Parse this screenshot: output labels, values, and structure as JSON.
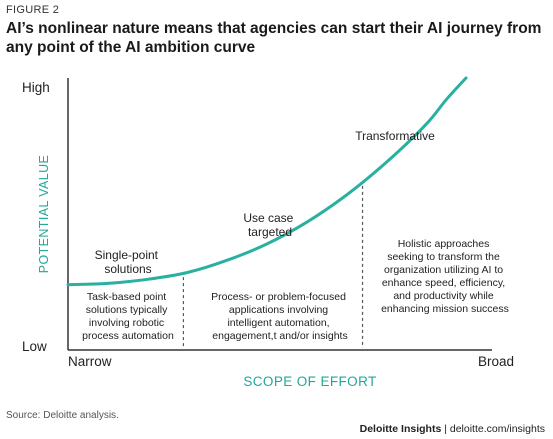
{
  "figure_label": "FIGURE 2",
  "title": "AI’s nonlinear nature means that agencies can start their AI journey from any point of the AI ambition curve",
  "source": "Source: Deloitte analysis.",
  "credit": {
    "brand": "Deloitte Insights",
    "separator": " | ",
    "url": "deloitte.com/insights"
  },
  "colors": {
    "curve": "#2ab0a0",
    "axis_label": "#1fa89a",
    "axis_line": "#333333",
    "divider": "#555555"
  },
  "chart_data": {
    "type": "line",
    "title": "",
    "xlabel": "SCOPE OF EFFORT",
    "ylabel": "POTENTIAL VALUE",
    "x_ticks": [
      "Narrow",
      "Broad"
    ],
    "y_ticks": [
      "Low",
      "High"
    ],
    "xlim": [
      0,
      1
    ],
    "ylim": [
      0,
      1
    ],
    "series": [
      {
        "x": [
          0.0,
          0.1,
          0.2,
          0.3,
          0.4,
          0.5,
          0.6,
          0.7,
          0.8,
          0.9,
          0.95,
          1.0
        ],
        "y": [
          0.24,
          0.245,
          0.26,
          0.285,
          0.33,
          0.39,
          0.47,
          0.57,
          0.69,
          0.83,
          0.92,
          1.0
        ]
      }
    ],
    "stages": [
      {
        "label_line1": "Single-point",
        "label_line2": "solutions",
        "description": [
          "Task-based point",
          "solutions typically",
          "involving robotic",
          "process automation"
        ]
      },
      {
        "label_line1": "Use case",
        "label_line2": "targeted",
        "description": [
          "Process- or problem-focused",
          "applications involving",
          "intelligent automation,",
          "engagement,t and/or insights"
        ]
      },
      {
        "label_line1": "Transformative",
        "label_line2": "",
        "description": [
          "Holistic approaches",
          "seeking to transform the",
          "organization utilizing AI to",
          "enhance speed, efficiency,",
          "and productivity while",
          "enhancing mission success"
        ]
      }
    ],
    "stage_boundaries_x": [
      0.29,
      0.74
    ],
    "grid": false,
    "legend": "none"
  }
}
